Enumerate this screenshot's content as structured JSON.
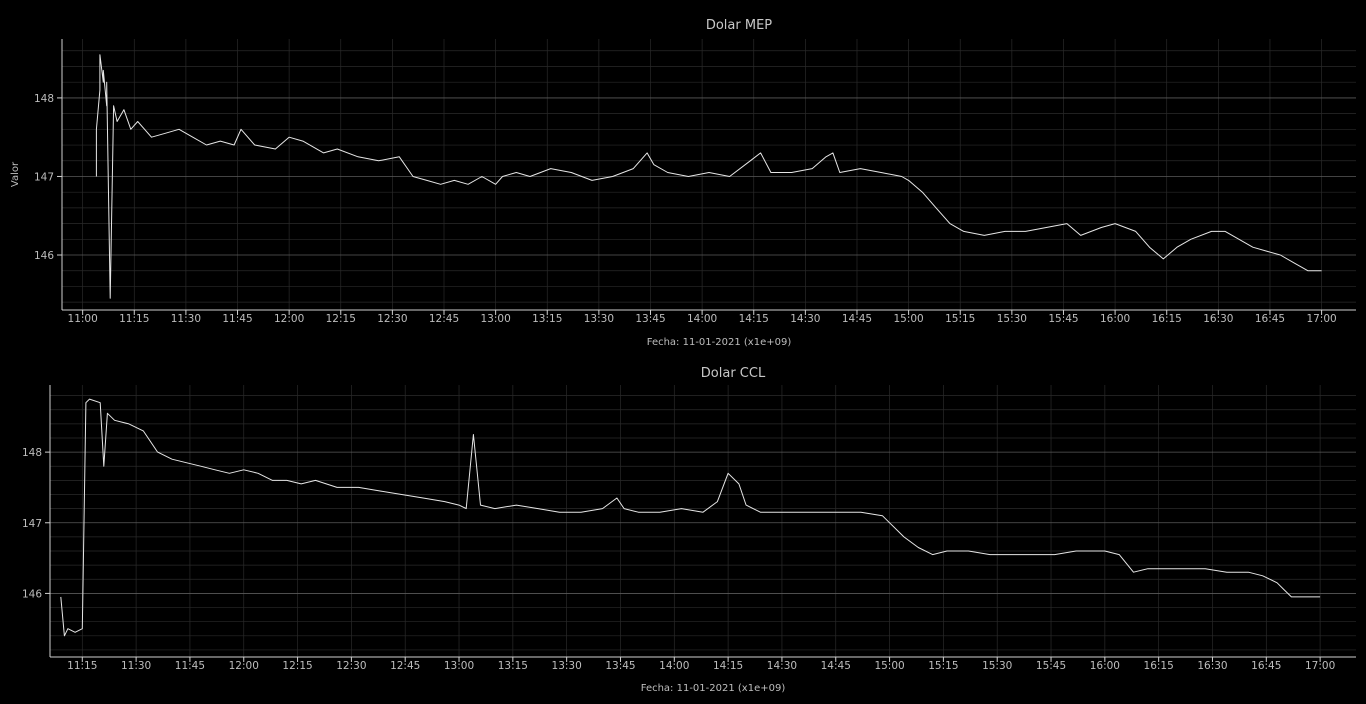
{
  "chart_data": [
    {
      "type": "line",
      "title": "Dolar MEP",
      "xlabel": "Fecha: 11-01-2021 (x1e+09)",
      "ylabel": "Valor",
      "x_ticks": [
        "11:00",
        "11:15",
        "11:30",
        "11:45",
        "12:00",
        "12:15",
        "12:30",
        "12:45",
        "13:00",
        "13:15",
        "13:30",
        "13:45",
        "14:00",
        "14:15",
        "14:30",
        "14:45",
        "15:00",
        "15:15",
        "15:30",
        "15:45",
        "16:00",
        "16:15",
        "16:30",
        "16:45",
        "17:00"
      ],
      "y_ticks": [
        146,
        147,
        148
      ],
      "xlim": [
        "10:54",
        "17:10"
      ],
      "ylim": [
        145.3,
        148.75
      ],
      "grid": true,
      "series": [
        {
          "color": "#e6e6e6",
          "x": [
            "11:04",
            "11:04",
            "11:05",
            "11:05",
            "11:06",
            "11:06",
            "11:07",
            "11:07",
            "11:08",
            "11:09",
            "11:10",
            "11:12",
            "11:14",
            "11:16",
            "11:20",
            "11:24",
            "11:28",
            "11:32",
            "11:36",
            "11:40",
            "11:44",
            "11:46",
            "11:50",
            "11:56",
            "12:00",
            "12:04",
            "12:10",
            "12:14",
            "12:20",
            "12:26",
            "12:32",
            "12:36",
            "12:40",
            "12:44",
            "12:48",
            "12:52",
            "12:56",
            "13:00",
            "13:02",
            "13:06",
            "13:10",
            "13:16",
            "13:22",
            "13:28",
            "13:34",
            "13:40",
            "13:44",
            "13:46",
            "13:50",
            "13:56",
            "14:02",
            "14:08",
            "14:14",
            "14:17",
            "14:20",
            "14:26",
            "14:32",
            "14:36",
            "14:38",
            "14:40",
            "14:46",
            "14:52",
            "14:58",
            "15:00",
            "15:04",
            "15:08",
            "15:12",
            "15:16",
            "15:22",
            "15:28",
            "15:34",
            "15:40",
            "15:46",
            "15:50",
            "15:56",
            "16:00",
            "16:06",
            "16:10",
            "16:14",
            "16:18",
            "16:22",
            "16:28",
            "16:32",
            "16:36",
            "16:40",
            "16:44",
            "16:48",
            "16:52",
            "16:56",
            "17:00"
          ],
          "y": [
            147.0,
            147.6,
            148.1,
            148.55,
            148.2,
            148.35,
            147.9,
            148.2,
            145.45,
            147.9,
            147.7,
            147.85,
            147.6,
            147.7,
            147.5,
            147.55,
            147.6,
            147.5,
            147.4,
            147.45,
            147.4,
            147.6,
            147.4,
            147.35,
            147.5,
            147.45,
            147.3,
            147.35,
            147.25,
            147.2,
            147.25,
            147.0,
            146.95,
            146.9,
            146.95,
            146.9,
            147.0,
            146.9,
            147.0,
            147.05,
            147.0,
            147.1,
            147.05,
            146.95,
            147.0,
            147.1,
            147.3,
            147.15,
            147.05,
            147.0,
            147.05,
            147.0,
            147.2,
            147.3,
            147.05,
            147.05,
            147.1,
            147.25,
            147.3,
            147.05,
            147.1,
            147.05,
            147.0,
            146.95,
            146.8,
            146.6,
            146.4,
            146.3,
            146.25,
            146.3,
            146.3,
            146.35,
            146.4,
            146.25,
            146.35,
            146.4,
            146.3,
            146.1,
            145.95,
            146.1,
            146.2,
            146.3,
            146.3,
            146.2,
            146.1,
            146.05,
            146.0,
            145.9,
            145.8,
            145.8
          ]
        }
      ]
    },
    {
      "type": "line",
      "title": "Dolar CCL",
      "xlabel": "Fecha: 11-01-2021 (x1e+09)",
      "ylabel": "",
      "x_ticks": [
        "11:15",
        "11:30",
        "11:45",
        "12:00",
        "12:15",
        "12:30",
        "12:45",
        "13:00",
        "13:15",
        "13:30",
        "13:45",
        "14:00",
        "14:15",
        "14:30",
        "14:45",
        "15:00",
        "15:15",
        "15:30",
        "15:45",
        "16:00",
        "16:15",
        "16:30",
        "16:45",
        "17:00"
      ],
      "y_ticks": [
        146,
        147,
        148
      ],
      "xlim": [
        "11:06",
        "17:10"
      ],
      "ylim": [
        145.1,
        148.95
      ],
      "grid": true,
      "series": [
        {
          "color": "#e6e6e6",
          "x": [
            "11:09",
            "11:10",
            "11:11",
            "11:13",
            "11:15",
            "11:16",
            "11:17",
            "11:20",
            "11:21",
            "11:22",
            "11:23",
            "11:24",
            "11:28",
            "11:32",
            "11:36",
            "11:40",
            "11:44",
            "11:48",
            "11:52",
            "11:56",
            "12:00",
            "12:04",
            "12:08",
            "12:12",
            "12:16",
            "12:20",
            "12:26",
            "12:32",
            "12:38",
            "12:44",
            "12:50",
            "12:56",
            "13:00",
            "13:02",
            "13:04",
            "13:06",
            "13:10",
            "13:16",
            "13:22",
            "13:28",
            "13:34",
            "13:40",
            "13:44",
            "13:46",
            "13:50",
            "13:56",
            "14:02",
            "14:08",
            "14:12",
            "14:15",
            "14:18",
            "14:20",
            "14:24",
            "14:28",
            "14:34",
            "14:40",
            "14:46",
            "14:52",
            "14:58",
            "15:00",
            "15:04",
            "15:08",
            "15:12",
            "15:16",
            "15:22",
            "15:28",
            "15:34",
            "15:40",
            "15:46",
            "15:52",
            "15:58",
            "16:00",
            "16:04",
            "16:08",
            "16:12",
            "16:16",
            "16:22",
            "16:28",
            "16:34",
            "16:40",
            "16:44",
            "16:48",
            "16:50",
            "16:52",
            "16:56",
            "17:00"
          ],
          "y": [
            145.95,
            145.4,
            145.5,
            145.45,
            145.5,
            148.7,
            148.75,
            148.7,
            147.8,
            148.55,
            148.5,
            148.45,
            148.4,
            148.3,
            148.0,
            147.9,
            147.85,
            147.8,
            147.75,
            147.7,
            147.75,
            147.7,
            147.6,
            147.6,
            147.55,
            147.6,
            147.5,
            147.5,
            147.45,
            147.4,
            147.35,
            147.3,
            147.25,
            147.2,
            148.25,
            147.25,
            147.2,
            147.25,
            147.2,
            147.15,
            147.15,
            147.2,
            147.35,
            147.2,
            147.15,
            147.15,
            147.2,
            147.15,
            147.3,
            147.7,
            147.55,
            147.25,
            147.15,
            147.15,
            147.15,
            147.15,
            147.15,
            147.15,
            147.1,
            147.0,
            146.8,
            146.65,
            146.55,
            146.6,
            146.6,
            146.55,
            146.55,
            146.55,
            146.55,
            146.6,
            146.6,
            146.6,
            146.55,
            146.3,
            146.35,
            146.35,
            146.35,
            146.35,
            146.3,
            146.3,
            146.25,
            146.15,
            146.05,
            145.95,
            145.95,
            145.95
          ]
        }
      ]
    }
  ]
}
